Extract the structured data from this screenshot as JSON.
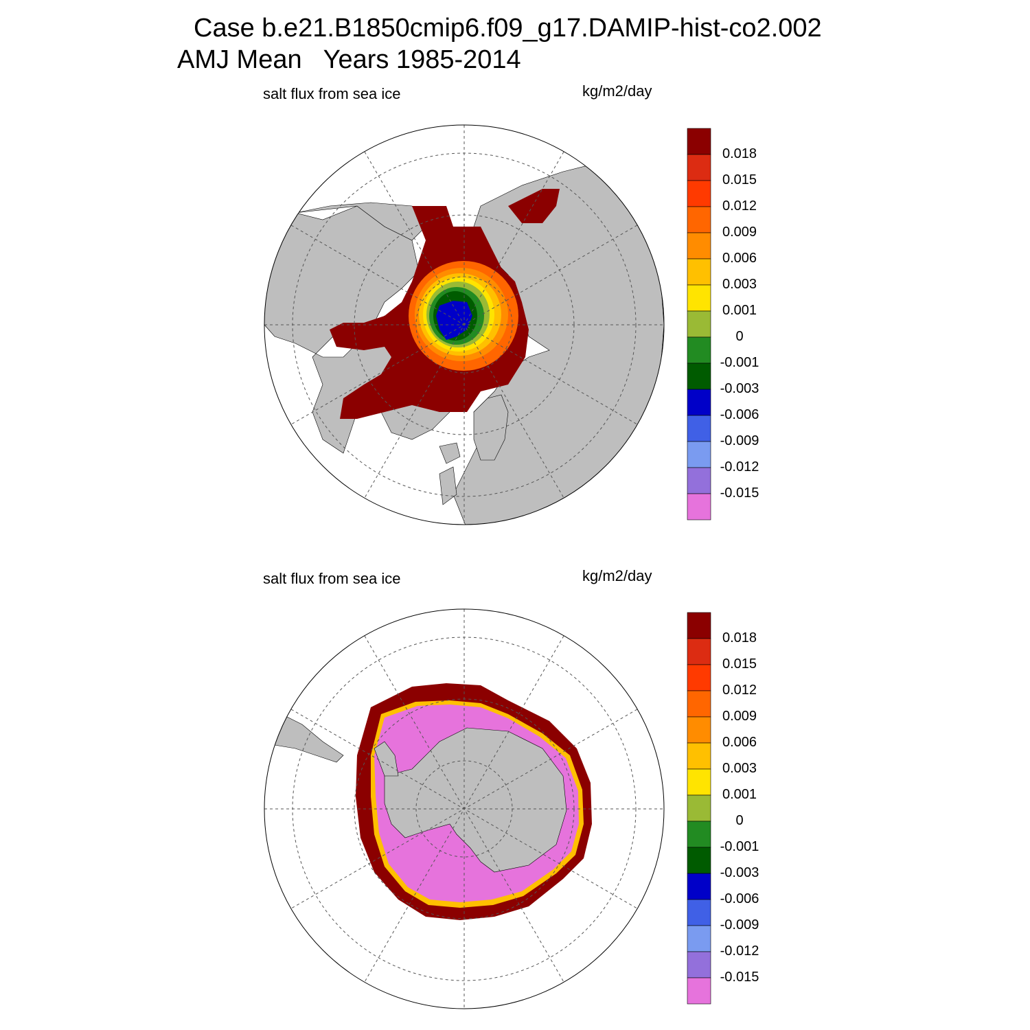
{
  "title": {
    "line1": "Case b.e21.B1850cmip6.f09_g17.DAMIP-hist-co2.002",
    "line2": "AMJ Mean   Years 1985-2014"
  },
  "colors": {
    "land": "#bebebe",
    "missing": "#ffffff",
    "grid": "#555555"
  },
  "colorbar": {
    "colors": [
      "#8b0000",
      "#dc2c12",
      "#ff3a00",
      "#ff6600",
      "#ff8c00",
      "#ffc000",
      "#ffe400",
      "#9aba35",
      "#228b22",
      "#005b00",
      "#0000c8",
      "#4060e6",
      "#7a9bf0",
      "#9370db",
      "#e673dc"
    ],
    "labels": [
      "0.018",
      "0.015",
      "0.012",
      "0.009",
      "0.006",
      "0.003",
      "0.001",
      "0",
      "-0.001",
      "-0.003",
      "-0.006",
      "-0.009",
      "-0.012",
      "-0.015"
    ]
  },
  "panels": [
    {
      "id": "north",
      "hemisphere": "Northern",
      "left_label": "salt flux from sea ice",
      "right_label": "kg/m2/day"
    },
    {
      "id": "south",
      "hemisphere": "Southern",
      "left_label": "salt flux from sea ice",
      "right_label": "kg/m2/day"
    }
  ]
}
